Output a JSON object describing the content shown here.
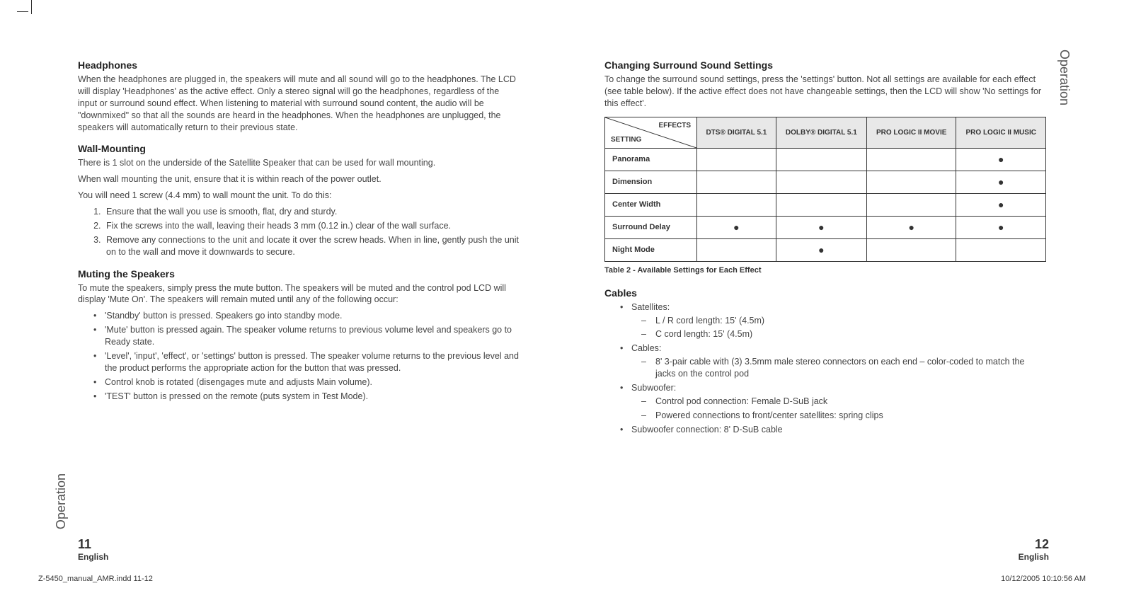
{
  "left": {
    "vertLabel": "Operation",
    "pageNum": "11",
    "lang": "English",
    "headphones": {
      "title": "Headphones",
      "body": "When the headphones are plugged in, the speakers will mute and all sound will go to the headphones. The LCD will display 'Headphones' as the active effect. Only a stereo signal will go the headphones, regardless of the input or surround sound effect. When listening to material with surround sound content, the audio will be \"downmixed\" so that all the sounds are heard in the headphones. When the headphones are unplugged, the speakers will automatically return to their previous state."
    },
    "wall": {
      "title": "Wall-Mounting",
      "p1": "There is 1 slot on the underside of the Satellite Speaker that can be used for wall mounting.",
      "p2": "When wall mounting the unit, ensure that it is within reach of the power outlet.",
      "p3": "You will need 1 screw (4.4 mm) to wall mount the unit. To do this:",
      "steps": [
        "Ensure that the wall you use is smooth, flat, dry and sturdy.",
        "Fix the screws into the wall, leaving their heads 3 mm (0.12 in.) clear of the wall surface.",
        "Remove any connections to the unit and locate it over the screw heads. When in line, gently push the unit on to the wall and move it downwards to secure."
      ]
    },
    "muting": {
      "title": "Muting the Speakers",
      "body": "To mute the speakers, simply press the mute button. The speakers will be muted and the control pod LCD will display 'Mute On'. The speakers will remain muted until any of the following occur:",
      "items": [
        "'Standby' button is pressed. Speakers go into standby mode.",
        "'Mute' button is pressed again. The speaker volume returns to previous volume level and speakers go to Ready state.",
        "'Level', 'input', 'effect', or 'settings' button is pressed. The speaker volume returns to the previous level and the product performs the appropriate action for the button that was pressed.",
        "Control knob is rotated (disengages mute and adjusts Main volume).",
        "'TEST' button is pressed on the remote (puts system in Test Mode)."
      ]
    }
  },
  "right": {
    "vertLabel": "Operation",
    "pageNum": "12",
    "lang": "English",
    "changing": {
      "title": "Changing Surround Sound Settings",
      "body": "To change the surround sound settings, press the 'settings' button. Not all settings are available for each effect (see table below). If the active effect does not have changeable settings, then the LCD will show 'No settings for this effect'."
    },
    "table": {
      "cornerTop": "EFFECTS",
      "cornerBottom": "SETTING",
      "cols": [
        "DTS® DIGITAL 5.1",
        "DOLBY® DIGITAL 5.1",
        "PRO LOGIC II MOVIE",
        "PRO LOGIC II MUSIC"
      ],
      "rows": [
        {
          "label": "Panorama",
          "cells": [
            "",
            "",
            "",
            "●"
          ]
        },
        {
          "label": "Dimension",
          "cells": [
            "",
            "",
            "",
            "●"
          ]
        },
        {
          "label": "Center Width",
          "cells": [
            "",
            "",
            "",
            "●"
          ]
        },
        {
          "label": "Surround Delay",
          "cells": [
            "●",
            "●",
            "●",
            "●"
          ]
        },
        {
          "label": "Night Mode",
          "cells": [
            "",
            "●",
            "",
            ""
          ]
        }
      ],
      "caption": "Table 2 - Available Settings for Each Effect"
    },
    "cables": {
      "title": "Cables",
      "items": [
        {
          "label": "Satellites:",
          "sub": [
            "L / R cord length: 15' (4.5m)",
            "C cord length: 15' (4.5m)"
          ]
        },
        {
          "label": "Cables:",
          "sub": [
            "8' 3-pair cable with (3) 3.5mm male stereo connectors on each end – color-coded to match the jacks on the control pod"
          ]
        },
        {
          "label": "Subwoofer:",
          "sub": [
            "Control pod connection: Female D-SuB jack",
            "Powered connections to front/center satellites: spring clips"
          ]
        },
        {
          "label": "Subwoofer connection: 8' D-SuB cable",
          "sub": []
        }
      ]
    }
  },
  "footer": {
    "file": "Z-5450_manual_AMR.indd   11-12",
    "stamp": "10/12/2005   10:10:56 AM"
  }
}
